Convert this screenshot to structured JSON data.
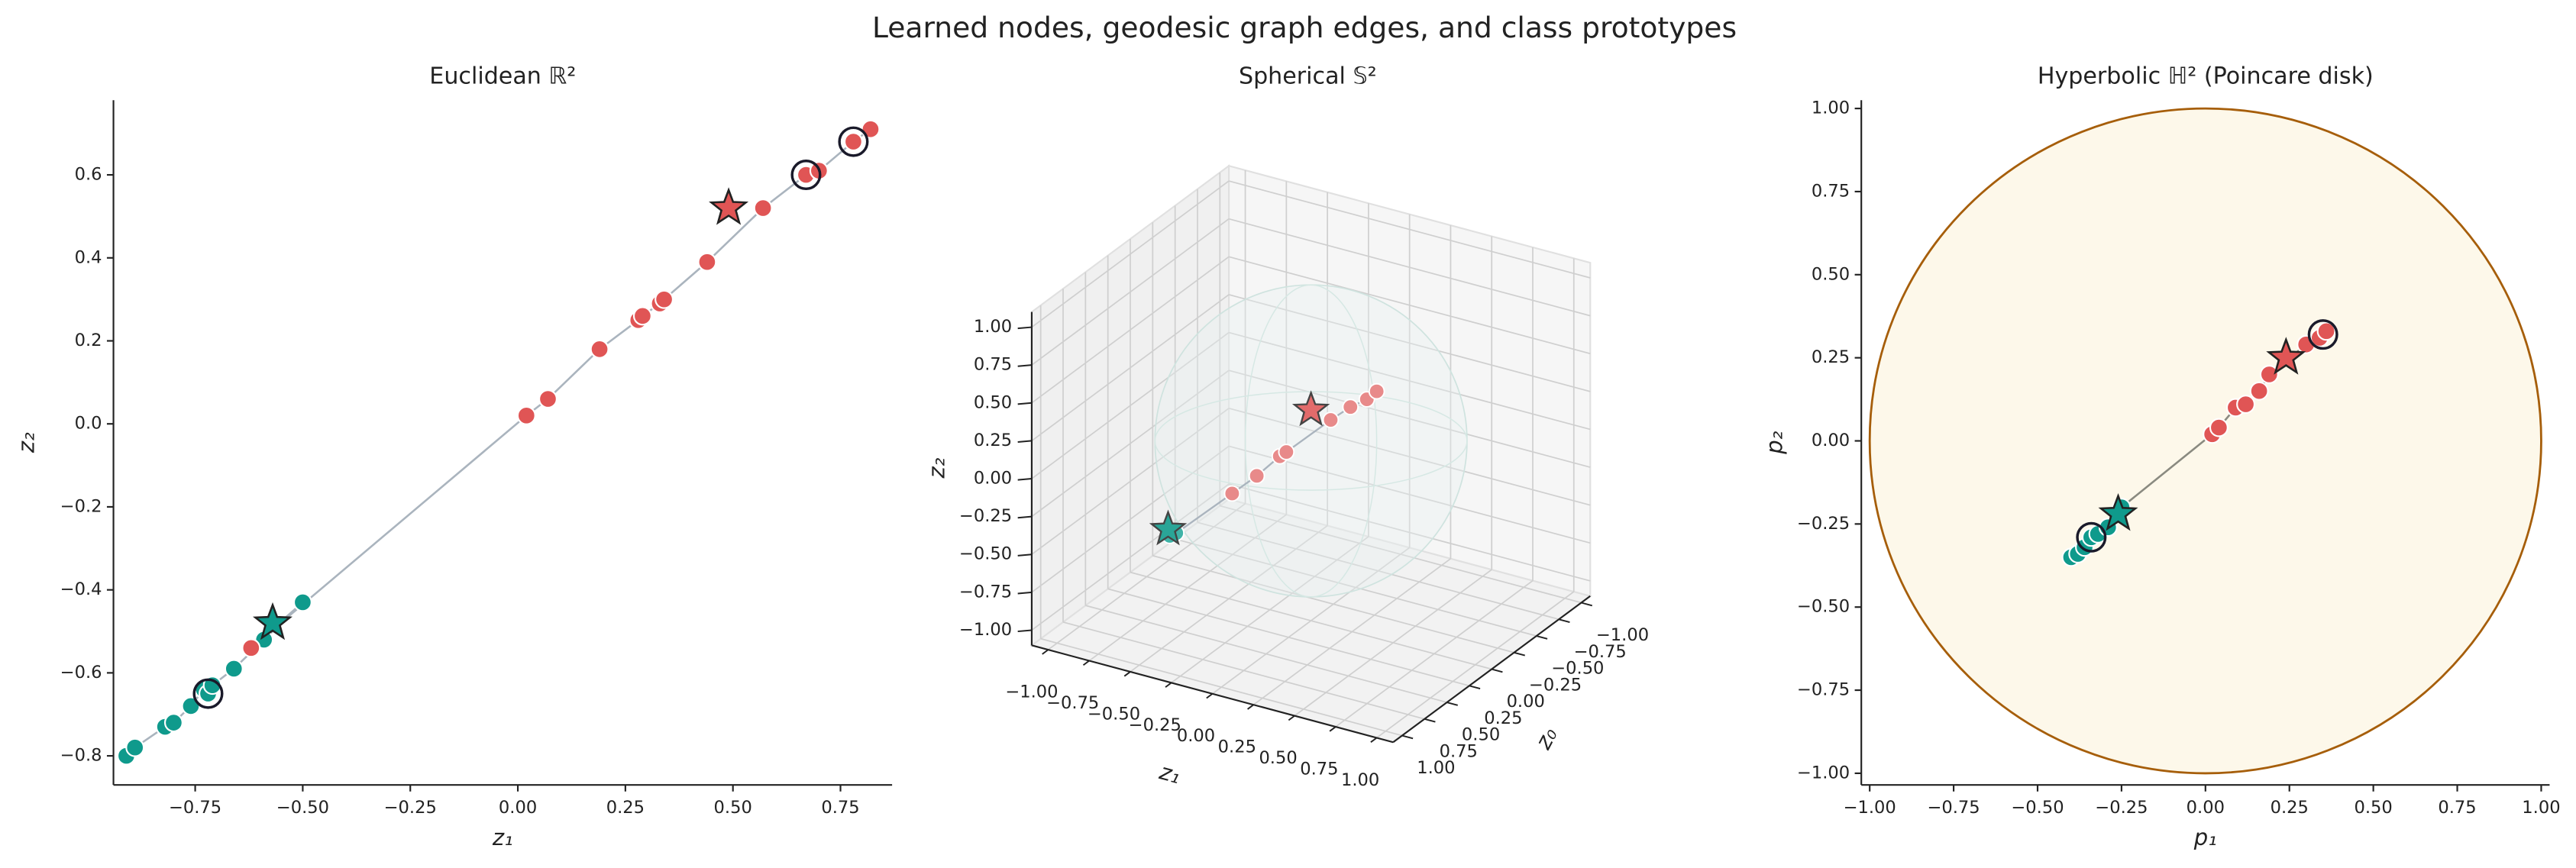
{
  "title": "Learned nodes, geodesic graph edges, and class prototypes",
  "chart_data": [
    {
      "type": "scatter",
      "title": "Euclidean ℝ²",
      "xlabel": "z₁",
      "ylabel": "z₂",
      "xlim": [
        -0.94,
        0.87
      ],
      "ylim": [
        -0.87,
        0.78
      ],
      "xticks": [
        {
          "value": -0.75,
          "label": "−0.75"
        },
        {
          "value": -0.5,
          "label": "−0.50"
        },
        {
          "value": -0.25,
          "label": "−0.25"
        },
        {
          "value": 0,
          "label": "0.00"
        },
        0.25,
        {
          "value": 0.5,
          "label": "0.50"
        },
        0.75
      ],
      "yticks": [
        {
          "value": -0.8,
          "label": "−0.8"
        },
        {
          "value": -0.6,
          "label": "−0.6"
        },
        {
          "value": -0.4,
          "label": "−0.4"
        },
        {
          "value": -0.2,
          "label": "−0.2"
        },
        {
          "value": 0,
          "label": "0.0"
        },
        0.2,
        0.4,
        0.6
      ],
      "edge_color": "#aab4be",
      "series": [
        {
          "color": "#0f9a8c",
          "x": [
            -0.91,
            -0.89,
            -0.82,
            -0.8,
            -0.76,
            -0.73,
            -0.72,
            -0.71,
            -0.66,
            -0.59,
            -0.5
          ],
          "values": [
            -0.8,
            -0.78,
            -0.73,
            -0.72,
            -0.68,
            -0.64,
            -0.65,
            -0.63,
            -0.59,
            -0.52,
            -0.43
          ]
        },
        {
          "color": "#e05555",
          "x": [
            -0.62,
            0.02,
            0.07,
            0.19,
            0.28,
            0.29,
            0.33,
            0.34,
            0.44,
            0.57,
            0.67,
            0.7,
            0.78,
            0.82
          ],
          "values": [
            -0.54,
            0.02,
            0.06,
            0.18,
            0.25,
            0.26,
            0.29,
            0.3,
            0.39,
            0.52,
            0.6,
            0.61,
            0.68,
            0.71
          ]
        }
      ],
      "prototypes": {
        "colors": [
          "#0f9a8c",
          "#e05555"
        ],
        "x": [
          -0.57,
          0.49
        ],
        "values": [
          -0.48,
          0.52
        ]
      },
      "highlighted": {
        "x": [
          -0.72,
          0.67,
          0.78
        ],
        "values": [
          -0.65,
          0.6,
          0.68
        ]
      }
    },
    {
      "type": "scatter3d",
      "title": "Spherical 𝕊²",
      "xlabel": "z₁",
      "ylabel": "z₀",
      "zlabel": "z₂",
      "xlim": [
        -1.1,
        1.1
      ],
      "ylim": [
        -1.1,
        1.1
      ],
      "zlim": [
        -1.1,
        1.1
      ],
      "xticks": [
        {
          "value": -1,
          "label": "−1.00"
        },
        {
          "value": -0.75,
          "label": "−0.75"
        },
        {
          "value": -0.5,
          "label": "−0.50"
        },
        {
          "value": -0.25,
          "label": "−0.25"
        },
        {
          "value": 0,
          "label": "0.00"
        },
        0.25,
        {
          "value": 0.5,
          "label": "0.50"
        },
        0.75,
        {
          "value": 1,
          "label": "1.00"
        }
      ],
      "yticks": [
        {
          "value": -1,
          "label": "−1.00"
        },
        {
          "value": -0.75,
          "label": "−0.75"
        },
        {
          "value": -0.5,
          "label": "−0.50"
        },
        {
          "value": -0.25,
          "label": "−0.25"
        },
        {
          "value": 0,
          "label": "0.00"
        },
        0.25,
        {
          "value": 0.5,
          "label": "0.50"
        },
        0.75,
        {
          "value": 1,
          "label": "1.00"
        }
      ],
      "zticks": [
        {
          "value": -1,
          "label": "−1.00"
        },
        {
          "value": -0.75,
          "label": "−0.75"
        },
        {
          "value": -0.5,
          "label": "−0.50"
        },
        {
          "value": -0.25,
          "label": "−0.25"
        },
        {
          "value": 0,
          "label": "0.00"
        },
        0.25,
        {
          "value": 0.5,
          "label": "0.50"
        },
        0.75,
        {
          "value": 1,
          "label": "1.00"
        }
      ],
      "edge_color": "#aab4be",
      "series": [
        {
          "color": "#3fb3a7",
          "x": [
            -0.86,
            -0.82
          ],
          "y": [
            0,
            0
          ],
          "values": [
            -0.79,
            -0.76
          ]
        },
        {
          "color": "#e88a8a",
          "x": [
            -0.48,
            -0.33,
            -0.19,
            -0.15,
            0.12,
            0.24,
            0.34,
            0.4
          ],
          "y": [
            0,
            0,
            0,
            0,
            0,
            0,
            0,
            0
          ],
          "values": [
            -0.4,
            -0.24,
            -0.07,
            -0.03,
            0.26,
            0.38,
            0.46,
            0.53
          ]
        }
      ],
      "prototypes": {
        "colors": [
          "#2aa597",
          "#e26b6b"
        ],
        "x": [
          -0.87,
          0
        ],
        "y": [
          0,
          0
        ],
        "values": [
          -0.75,
          0.29
        ]
      }
    },
    {
      "type": "scatter",
      "title": "Hyperbolic ℍ² (Poincare disk)",
      "xlabel": "p₁",
      "ylabel": "p₂",
      "xlim": [
        -1.025,
        1.025
      ],
      "ylim": [
        -1.035,
        1.025
      ],
      "xticks": [
        {
          "value": -1,
          "label": "−1.00"
        },
        {
          "value": -0.75,
          "label": "−0.75"
        },
        {
          "value": -0.5,
          "label": "−0.50"
        },
        {
          "value": -0.25,
          "label": "−0.25"
        },
        {
          "value": 0,
          "label": "0.00"
        },
        0.25,
        {
          "value": 0.5,
          "label": "0.50"
        },
        0.75,
        {
          "value": 1,
          "label": "1.00"
        }
      ],
      "yticks": [
        {
          "value": -1,
          "label": "−1.00"
        },
        {
          "value": -0.75,
          "label": "−0.75"
        },
        {
          "value": -0.5,
          "label": "−0.50"
        },
        {
          "value": -0.25,
          "label": "−0.25"
        },
        {
          "value": 0,
          "label": "0.00"
        },
        0.25,
        {
          "value": 0.5,
          "label": "0.50"
        },
        0.75,
        {
          "value": 1,
          "label": "1.00"
        }
      ],
      "edge_color": "#8a8a80",
      "disk": {
        "radius": 1,
        "fill": "#fdf8ea",
        "edge": "#a65e0a"
      },
      "series": [
        {
          "color": "#0f9a8c",
          "x": [
            -0.4,
            -0.38,
            -0.36,
            -0.34,
            -0.32,
            -0.29,
            -0.25
          ],
          "values": [
            -0.35,
            -0.34,
            -0.32,
            -0.29,
            -0.28,
            -0.26,
            -0.2
          ]
        },
        {
          "color": "#e05555",
          "x": [
            0.02,
            0.04,
            0.09,
            0.12,
            0.16,
            0.19,
            0.3,
            0.34,
            0.36
          ],
          "values": [
            0.02,
            0.04,
            0.1,
            0.11,
            0.15,
            0.2,
            0.29,
            0.31,
            0.33
          ]
        }
      ],
      "prototypes": {
        "colors": [
          "#0f9a8c",
          "#e05555"
        ],
        "x": [
          -0.26,
          0.24
        ],
        "values": [
          -0.22,
          0.25
        ]
      },
      "highlighted": {
        "x": [
          -0.34,
          0.35
        ],
        "values": [
          -0.29,
          0.32
        ]
      }
    }
  ]
}
